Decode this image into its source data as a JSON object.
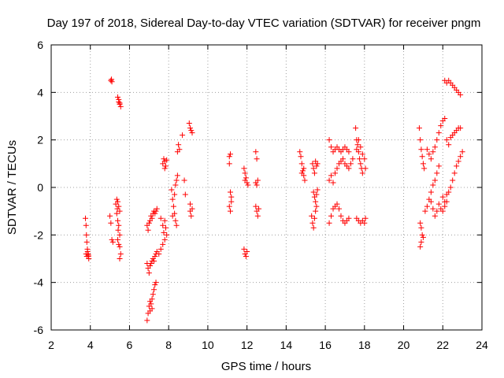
{
  "chart_data": {
    "type": "scatter",
    "title": "Day 197 of 2018, Sidereal Day-to-day VTEC variation (SDTVAR) for receiver pngm",
    "xlabel": "GPS time / hours",
    "ylabel": "SDTVAR / TECUs",
    "xlim": [
      2,
      24
    ],
    "ylim": [
      -6,
      6
    ],
    "xticks": [
      "2",
      "4",
      "6",
      "8",
      "10",
      "12",
      "14",
      "16",
      "18",
      "20",
      "22",
      "24"
    ],
    "yticks": [
      "-6",
      "-4",
      "-2",
      "0",
      "2",
      "4",
      "6"
    ],
    "grid": true,
    "marker": "+",
    "marker_color": "#ff0000",
    "series": [
      {
        "name": "pngm",
        "points": [
          [
            3.75,
            -1.3
          ],
          [
            3.78,
            -1.6
          ],
          [
            3.8,
            -2.0
          ],
          [
            3.82,
            -2.3
          ],
          [
            3.85,
            -2.6
          ],
          [
            3.88,
            -2.8
          ],
          [
            3.9,
            -2.9
          ],
          [
            3.92,
            -3.0
          ],
          [
            3.78,
            -2.8
          ],
          [
            3.82,
            -2.9
          ],
          [
            3.86,
            -2.7
          ],
          [
            3.9,
            -2.85
          ],
          [
            5.05,
            4.5
          ],
          [
            5.08,
            4.55
          ],
          [
            5.1,
            4.45
          ],
          [
            5.0,
            -1.2
          ],
          [
            5.05,
            -1.5
          ],
          [
            5.1,
            -2.2
          ],
          [
            5.15,
            -2.3
          ],
          [
            5.3,
            -0.7
          ],
          [
            5.35,
            -0.5
          ],
          [
            5.4,
            -0.6
          ],
          [
            5.45,
            -0.8
          ],
          [
            5.5,
            -1.0
          ],
          [
            5.35,
            -1.1
          ],
          [
            5.4,
            -1.4
          ],
          [
            5.45,
            -1.6
          ],
          [
            5.5,
            -2.0
          ],
          [
            5.4,
            -2.2
          ],
          [
            5.45,
            -2.4
          ],
          [
            5.5,
            -2.5
          ],
          [
            5.55,
            -2.8
          ],
          [
            5.5,
            -3.0
          ],
          [
            5.42,
            -1.8
          ],
          [
            5.38,
            -0.9
          ],
          [
            5.4,
            3.8
          ],
          [
            5.45,
            3.6
          ],
          [
            5.5,
            3.5
          ],
          [
            5.55,
            3.4
          ],
          [
            5.45,
            3.7
          ],
          [
            5.5,
            3.55
          ],
          [
            6.9,
            -1.6
          ],
          [
            6.95,
            -1.8
          ],
          [
            7.0,
            -1.5
          ],
          [
            7.05,
            -1.4
          ],
          [
            7.1,
            -1.2
          ],
          [
            7.15,
            -1.3
          ],
          [
            7.2,
            -1.1
          ],
          [
            7.25,
            -1.0
          ],
          [
            7.3,
            -1.1
          ],
          [
            7.35,
            -1.0
          ],
          [
            7.4,
            -0.9
          ],
          [
            6.9,
            -3.2
          ],
          [
            6.95,
            -3.4
          ],
          [
            7.0,
            -3.6
          ],
          [
            7.05,
            -3.3
          ],
          [
            7.1,
            -3.2
          ],
          [
            7.15,
            -3.1
          ],
          [
            7.2,
            -3.0
          ],
          [
            7.25,
            -3.1
          ],
          [
            7.3,
            -2.9
          ],
          [
            7.35,
            -2.8
          ],
          [
            7.4,
            -2.7
          ],
          [
            6.9,
            -5.6
          ],
          [
            6.95,
            -5.3
          ],
          [
            7.0,
            -5.0
          ],
          [
            7.05,
            -5.2
          ],
          [
            7.1,
            -4.9
          ],
          [
            7.15,
            -4.7
          ],
          [
            7.2,
            -4.5
          ],
          [
            7.25,
            -4.3
          ],
          [
            7.3,
            -4.1
          ],
          [
            7.35,
            -4.0
          ],
          [
            7.05,
            -4.8
          ],
          [
            7.15,
            -5.1
          ],
          [
            7.5,
            -2.8
          ],
          [
            7.6,
            -2.6
          ],
          [
            7.7,
            -2.4
          ],
          [
            7.8,
            -2.2
          ],
          [
            7.7,
            -1.6
          ],
          [
            7.75,
            -1.9
          ],
          [
            7.8,
            -1.4
          ],
          [
            7.85,
            -1.7
          ],
          [
            7.9,
            -2.0
          ],
          [
            7.6,
            -1.3
          ],
          [
            7.7,
            1.0
          ],
          [
            7.75,
            1.2
          ],
          [
            7.8,
            1.1
          ],
          [
            7.85,
            0.9
          ],
          [
            7.9,
            1.15
          ],
          [
            7.8,
            0.8
          ],
          [
            8.15,
            -0.1
          ],
          [
            8.2,
            -0.5
          ],
          [
            8.25,
            -0.8
          ],
          [
            8.3,
            -1.1
          ],
          [
            8.35,
            -1.4
          ],
          [
            8.4,
            -1.6
          ],
          [
            8.2,
            -1.2
          ],
          [
            8.3,
            -0.3
          ],
          [
            8.35,
            0.1
          ],
          [
            8.4,
            0.3
          ],
          [
            8.45,
            0.5
          ],
          [
            8.45,
            1.5
          ],
          [
            8.5,
            1.8
          ],
          [
            8.55,
            1.6
          ],
          [
            8.7,
            2.2
          ],
          [
            8.8,
            0.3
          ],
          [
            8.85,
            -0.3
          ],
          [
            9.05,
            2.7
          ],
          [
            9.1,
            2.5
          ],
          [
            9.15,
            2.4
          ],
          [
            9.2,
            2.3
          ],
          [
            9.1,
            -1.0
          ],
          [
            9.15,
            -1.2
          ],
          [
            9.2,
            -0.9
          ],
          [
            9.1,
            -0.7
          ],
          [
            11.1,
            1.3
          ],
          [
            11.15,
            1.4
          ],
          [
            11.1,
            1.0
          ],
          [
            11.15,
            -0.2
          ],
          [
            11.2,
            -0.6
          ],
          [
            11.1,
            -0.8
          ],
          [
            11.15,
            -1.0
          ],
          [
            11.2,
            -0.4
          ],
          [
            11.85,
            0.8
          ],
          [
            11.9,
            0.6
          ],
          [
            11.95,
            0.4
          ],
          [
            12.0,
            0.2
          ],
          [
            12.05,
            0.1
          ],
          [
            11.9,
            0.3
          ],
          [
            11.85,
            -2.6
          ],
          [
            11.9,
            -2.8
          ],
          [
            11.95,
            -2.9
          ],
          [
            12.0,
            -2.7
          ],
          [
            12.45,
            1.5
          ],
          [
            12.5,
            1.2
          ],
          [
            12.45,
            0.2
          ],
          [
            12.5,
            0.1
          ],
          [
            12.55,
            0.3
          ],
          [
            12.45,
            -0.8
          ],
          [
            12.5,
            -1.0
          ],
          [
            12.55,
            -1.2
          ],
          [
            12.6,
            -0.9
          ],
          [
            14.7,
            1.5
          ],
          [
            14.75,
            1.3
          ],
          [
            14.8,
            1.0
          ],
          [
            14.85,
            0.7
          ],
          [
            14.9,
            0.5
          ],
          [
            14.95,
            0.3
          ],
          [
            14.8,
            0.6
          ],
          [
            14.9,
            0.8
          ],
          [
            15.35,
            1.0
          ],
          [
            15.4,
            0.8
          ],
          [
            15.45,
            0.6
          ],
          [
            15.5,
            1.1
          ],
          [
            15.55,
            0.9
          ],
          [
            15.6,
            1.0
          ],
          [
            15.4,
            -0.2
          ],
          [
            15.45,
            -0.4
          ],
          [
            15.5,
            -0.6
          ],
          [
            15.55,
            -0.3
          ],
          [
            15.6,
            -0.1
          ],
          [
            15.3,
            -1.2
          ],
          [
            15.35,
            -1.5
          ],
          [
            15.4,
            -1.7
          ],
          [
            15.45,
            -1.3
          ],
          [
            15.5,
            -1.0
          ],
          [
            15.55,
            -0.8
          ],
          [
            16.2,
            2.0
          ],
          [
            16.3,
            1.7
          ],
          [
            16.4,
            1.5
          ],
          [
            16.5,
            1.6
          ],
          [
            16.6,
            1.7
          ],
          [
            16.7,
            1.6
          ],
          [
            16.8,
            1.5
          ],
          [
            16.9,
            1.6
          ],
          [
            17.0,
            1.7
          ],
          [
            17.1,
            1.6
          ],
          [
            17.2,
            1.5
          ],
          [
            16.2,
            0.3
          ],
          [
            16.3,
            0.5
          ],
          [
            16.4,
            0.2
          ],
          [
            16.5,
            0.6
          ],
          [
            16.6,
            0.8
          ],
          [
            16.7,
            1.0
          ],
          [
            16.8,
            1.1
          ],
          [
            16.9,
            1.2
          ],
          [
            17.0,
            1.0
          ],
          [
            17.1,
            0.9
          ],
          [
            17.2,
            0.8
          ],
          [
            17.3,
            1.0
          ],
          [
            17.4,
            1.2
          ],
          [
            16.2,
            -1.5
          ],
          [
            16.3,
            -1.2
          ],
          [
            16.4,
            -0.9
          ],
          [
            16.5,
            -0.8
          ],
          [
            16.6,
            -0.7
          ],
          [
            16.7,
            -0.9
          ],
          [
            16.8,
            -1.2
          ],
          [
            16.9,
            -1.4
          ],
          [
            17.0,
            -1.5
          ],
          [
            17.1,
            -1.4
          ],
          [
            17.2,
            -1.3
          ],
          [
            17.55,
            2.5
          ],
          [
            17.6,
            2.0
          ],
          [
            17.65,
            1.8
          ],
          [
            17.7,
            1.5
          ],
          [
            17.75,
            1.2
          ],
          [
            17.8,
            1.0
          ],
          [
            17.85,
            0.8
          ],
          [
            17.9,
            0.6
          ],
          [
            17.6,
            1.6
          ],
          [
            17.7,
            2.0
          ],
          [
            17.8,
            1.7
          ],
          [
            17.9,
            1.4
          ],
          [
            18.0,
            1.2
          ],
          [
            18.05,
            0.8
          ],
          [
            17.6,
            -1.3
          ],
          [
            17.7,
            -1.4
          ],
          [
            17.8,
            -1.5
          ],
          [
            17.9,
            -1.4
          ],
          [
            18.0,
            -1.5
          ],
          [
            18.05,
            -1.3
          ],
          [
            20.8,
            2.5
          ],
          [
            20.85,
            2.0
          ],
          [
            20.9,
            1.6
          ],
          [
            20.95,
            1.3
          ],
          [
            21.0,
            1.0
          ],
          [
            21.05,
            0.8
          ],
          [
            20.85,
            -1.5
          ],
          [
            20.9,
            -1.7
          ],
          [
            20.95,
            -2.0
          ],
          [
            21.0,
            -2.1
          ],
          [
            20.9,
            -2.3
          ],
          [
            20.85,
            -2.5
          ],
          [
            21.1,
            -1.0
          ],
          [
            21.2,
            -0.8
          ],
          [
            21.3,
            -0.5
          ],
          [
            21.4,
            -0.2
          ],
          [
            21.5,
            0.1
          ],
          [
            21.6,
            0.3
          ],
          [
            21.7,
            0.6
          ],
          [
            21.8,
            0.9
          ],
          [
            21.2,
            1.6
          ],
          [
            21.3,
            1.4
          ],
          [
            21.4,
            1.2
          ],
          [
            21.5,
            1.5
          ],
          [
            21.6,
            1.7
          ],
          [
            21.7,
            2.0
          ],
          [
            21.8,
            2.3
          ],
          [
            21.9,
            2.6
          ],
          [
            22.0,
            2.8
          ],
          [
            22.1,
            2.9
          ],
          [
            21.4,
            -0.6
          ],
          [
            21.5,
            -0.9
          ],
          [
            21.6,
            -1.2
          ],
          [
            21.7,
            -1.0
          ],
          [
            21.8,
            -0.7
          ],
          [
            21.9,
            -0.9
          ],
          [
            22.0,
            -1.0
          ],
          [
            22.1,
            -0.8
          ],
          [
            22.2,
            -0.6
          ],
          [
            22.1,
            4.5
          ],
          [
            22.2,
            4.4
          ],
          [
            22.3,
            4.5
          ],
          [
            22.4,
            4.4
          ],
          [
            22.5,
            4.3
          ],
          [
            22.6,
            4.2
          ],
          [
            22.7,
            4.1
          ],
          [
            22.8,
            4.0
          ],
          [
            22.9,
            3.9
          ],
          [
            22.2,
            2.0
          ],
          [
            22.3,
            1.8
          ],
          [
            22.4,
            2.1
          ],
          [
            22.5,
            2.2
          ],
          [
            22.6,
            2.3
          ],
          [
            22.7,
            2.4
          ],
          [
            22.8,
            2.5
          ],
          [
            22.9,
            2.5
          ],
          [
            22.3,
            -0.2
          ],
          [
            22.4,
            0.0
          ],
          [
            22.5,
            0.3
          ],
          [
            22.6,
            0.6
          ],
          [
            22.7,
            0.9
          ],
          [
            22.8,
            1.1
          ],
          [
            22.9,
            1.3
          ],
          [
            23.0,
            1.5
          ],
          [
            22.0,
            -0.4
          ],
          [
            22.1,
            -0.6
          ],
          [
            22.2,
            -0.3
          ]
        ]
      }
    ]
  }
}
